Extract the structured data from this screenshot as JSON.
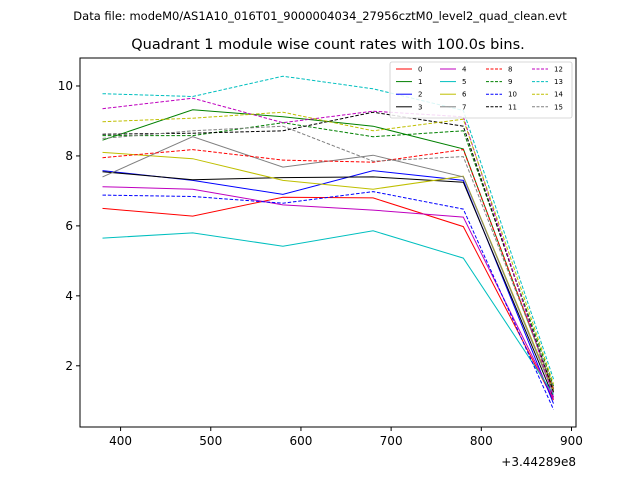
{
  "chart_data": {
    "type": "line",
    "suptitle": "Data file: modeM0/AS1A10_016T01_9000004034_27956cztM0_level2_quad_clean.evt",
    "title": "Quadrant 1 module wise count rates with 100.0s bins.",
    "xlabel": "",
    "ylabel": "",
    "x_offset_label": "+3.44289e8",
    "x": [
      380,
      480,
      580,
      680,
      780,
      880
    ],
    "xlim": [
      355,
      905
    ],
    "ylim": [
      0.25,
      10.8
    ],
    "xticks": [
      400,
      500,
      600,
      700,
      800,
      900
    ],
    "xtick_labels": [
      "400",
      "500",
      "600",
      "700",
      "800",
      "900"
    ],
    "yticks": [
      2,
      4,
      6,
      8,
      10
    ],
    "ytick_labels": [
      "2",
      "4",
      "6",
      "8",
      "10"
    ],
    "legend_position": "top-right",
    "legend_ncol": 4,
    "series": [
      {
        "name": "0",
        "color": "#ff0000",
        "dash": "solid",
        "values": [
          6.5,
          6.28,
          6.82,
          6.8,
          5.98,
          1.02
        ]
      },
      {
        "name": "1",
        "color": "#008000",
        "dash": "solid",
        "values": [
          8.45,
          9.32,
          9.12,
          8.85,
          8.2,
          1.32
        ]
      },
      {
        "name": "2",
        "color": "#0000ff",
        "dash": "solid",
        "values": [
          7.58,
          7.3,
          6.9,
          7.58,
          7.3,
          0.92
        ]
      },
      {
        "name": "3",
        "color": "#000000",
        "dash": "solid",
        "values": [
          7.55,
          7.32,
          7.38,
          7.4,
          7.25,
          1.1
        ]
      },
      {
        "name": "4",
        "color": "#bf00bf",
        "dash": "solid",
        "values": [
          7.12,
          7.05,
          6.6,
          6.45,
          6.25,
          1.05
        ]
      },
      {
        "name": "5",
        "color": "#00bfbf",
        "dash": "solid",
        "values": [
          5.65,
          5.8,
          5.42,
          5.86,
          5.08,
          1.18
        ]
      },
      {
        "name": "6",
        "color": "#bfbf00",
        "dash": "solid",
        "values": [
          8.1,
          7.92,
          7.3,
          7.05,
          7.42,
          1.28
        ]
      },
      {
        "name": "7",
        "color": "#808080",
        "dash": "solid",
        "values": [
          7.4,
          8.55,
          7.68,
          8.02,
          7.4,
          1.22
        ]
      },
      {
        "name": "8",
        "color": "#ff0000",
        "dash": "dashed",
        "values": [
          7.95,
          8.18,
          7.88,
          7.82,
          8.18,
          1.35
        ]
      },
      {
        "name": "9",
        "color": "#008000",
        "dash": "dashed",
        "values": [
          8.58,
          8.58,
          8.95,
          8.55,
          8.72,
          1.42
        ]
      },
      {
        "name": "10",
        "color": "#0000ff",
        "dash": "dashed",
        "values": [
          6.88,
          6.84,
          6.65,
          6.98,
          6.48,
          0.75
        ]
      },
      {
        "name": "11",
        "color": "#000000",
        "dash": "dashed",
        "values": [
          8.62,
          8.65,
          8.72,
          9.25,
          8.85,
          1.25
        ]
      },
      {
        "name": "12",
        "color": "#bf00bf",
        "dash": "dashed",
        "values": [
          9.35,
          9.65,
          8.95,
          9.28,
          9.12,
          1.1
        ]
      },
      {
        "name": "13",
        "color": "#00bfbf",
        "dash": "dashed",
        "values": [
          9.78,
          9.7,
          10.28,
          9.92,
          9.3,
          1.62
        ]
      },
      {
        "name": "14",
        "color": "#bfbf00",
        "dash": "dashed",
        "values": [
          8.98,
          9.08,
          9.25,
          8.72,
          9.05,
          1.48
        ]
      },
      {
        "name": "15",
        "color": "#808080",
        "dash": "dashed",
        "values": [
          8.5,
          8.72,
          8.85,
          7.85,
          7.98,
          1.38
        ]
      }
    ]
  }
}
